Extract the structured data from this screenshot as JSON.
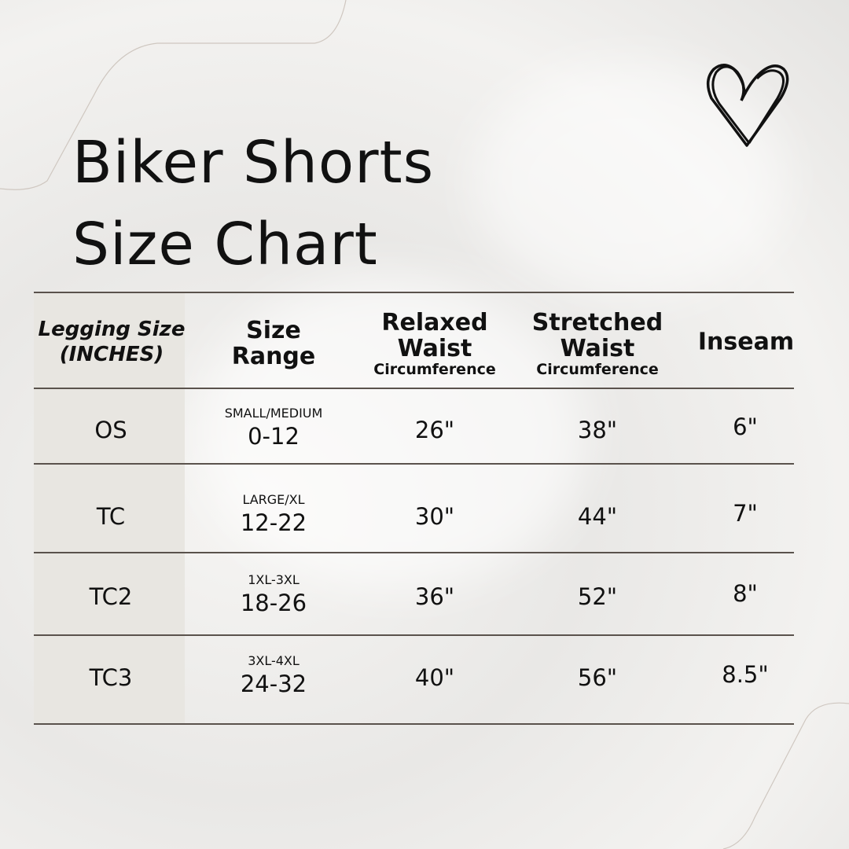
{
  "title": {
    "line1": "Biker Shorts",
    "line2": "Size Chart"
  },
  "decoration": {
    "icon": "heart-icon"
  },
  "table": {
    "headers": [
      {
        "line1": "Legging Size",
        "line2": "(INCHES)"
      },
      {
        "line1": "Size",
        "line2": "Range"
      },
      {
        "line1": "Relaxed",
        "line2": "Waist",
        "sub": "Circumference"
      },
      {
        "line1": "Stretched",
        "line2": "Waist",
        "sub": "Circumference"
      },
      {
        "line1": "Inseam"
      }
    ],
    "rows": [
      {
        "size": "OS",
        "range_label": "SMALL/MEDIUM",
        "range": "0-12",
        "relaxed": "26\"",
        "stretched": "38\"",
        "inseam": "6\""
      },
      {
        "size": "TC",
        "range_label": "LARGE/XL",
        "range": "12-22",
        "relaxed": "30\"",
        "stretched": "44\"",
        "inseam": "7\""
      },
      {
        "size": "TC2",
        "range_label": "1XL-3XL",
        "range": "18-26",
        "relaxed": "36\"",
        "stretched": "52\"",
        "inseam": "8\""
      },
      {
        "size": "TC3",
        "range_label": "3XL-4XL",
        "range": "24-32",
        "relaxed": "40\"",
        "stretched": "56\"",
        "inseam": "8.5\""
      }
    ]
  }
}
